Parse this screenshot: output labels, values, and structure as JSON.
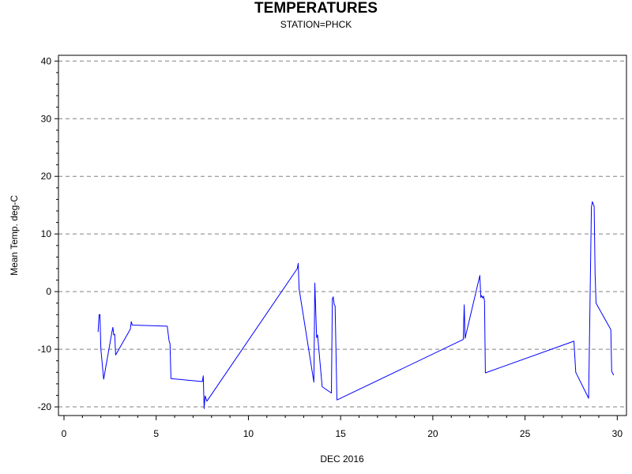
{
  "chart_data": {
    "type": "line",
    "title": "TEMPERATURES",
    "subtitle": "STATION=PHCK",
    "xlabel": "DEC 2016",
    "ylabel": "Mean Temp. deg-C",
    "xlim": [
      -0.3,
      30.5
    ],
    "ylim": [
      -21.5,
      41
    ],
    "xticks": [
      0,
      5,
      10,
      15,
      20,
      25,
      30
    ],
    "yticks": [
      -20,
      -10,
      0,
      10,
      20,
      30,
      40
    ],
    "grid": "horizontal dashed",
    "series": [
      {
        "color": "#0000ff",
        "points": [
          [
            1.85,
            -7.0
          ],
          [
            1.9,
            -4.0
          ],
          [
            1.95,
            -4.0
          ],
          [
            2.0,
            -10.0
          ],
          [
            2.15,
            -15.2
          ],
          [
            2.6,
            -7.0
          ],
          [
            2.65,
            -6.2
          ],
          [
            2.7,
            -7.5
          ],
          [
            2.75,
            -7.4
          ],
          [
            2.8,
            -11.0
          ],
          [
            3.6,
            -6.5
          ],
          [
            3.65,
            -5.2
          ],
          [
            3.7,
            -5.8
          ],
          [
            5.6,
            -6.0
          ],
          [
            5.7,
            -8.6
          ],
          [
            5.75,
            -9.0
          ],
          [
            5.8,
            -15.1
          ],
          [
            7.5,
            -15.6
          ],
          [
            7.55,
            -14.6
          ],
          [
            7.6,
            -20.3
          ],
          [
            7.65,
            -18.1
          ],
          [
            7.75,
            -19.0
          ],
          [
            12.65,
            4.0
          ],
          [
            12.7,
            4.9
          ],
          [
            12.75,
            0.5
          ],
          [
            13.55,
            -15.7
          ],
          [
            13.6,
            1.5
          ],
          [
            13.7,
            -8.0
          ],
          [
            13.75,
            -7.5
          ],
          [
            14.0,
            -16.5
          ],
          [
            14.5,
            -17.6
          ],
          [
            14.55,
            -1.3
          ],
          [
            14.6,
            -0.9
          ],
          [
            14.65,
            -2.2
          ],
          [
            14.7,
            -2.5
          ],
          [
            14.8,
            -18.8
          ],
          [
            21.65,
            -8.3
          ],
          [
            21.7,
            -2.3
          ],
          [
            21.75,
            -8.1
          ],
          [
            22.55,
            2.8
          ],
          [
            22.6,
            -1.0
          ],
          [
            22.65,
            -0.7
          ],
          [
            22.7,
            -1.1
          ],
          [
            22.75,
            -0.8
          ],
          [
            22.8,
            -1.6
          ],
          [
            22.85,
            -14.1
          ],
          [
            27.65,
            -8.6
          ],
          [
            27.75,
            -14.0
          ],
          [
            28.45,
            -18.5
          ],
          [
            28.6,
            14.6
          ],
          [
            28.65,
            15.6
          ],
          [
            28.75,
            14.8
          ],
          [
            28.8,
            3.0
          ],
          [
            28.85,
            -2.0
          ],
          [
            29.65,
            -6.6
          ],
          [
            29.7,
            -13.8
          ],
          [
            29.8,
            -14.5
          ]
        ]
      }
    ]
  }
}
